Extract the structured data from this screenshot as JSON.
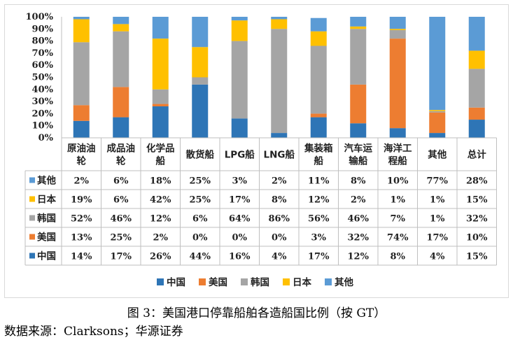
{
  "caption": "图 3：美国港口停靠船舶各造船国比例（按 GT）",
  "source": "数据来源：Clarksons；华源证券",
  "chart_data": {
    "type": "bar",
    "stacked": "percent",
    "categories": [
      [
        "原油油",
        "轮"
      ],
      [
        "成品油",
        "轮"
      ],
      [
        "化学品",
        "船"
      ],
      [
        "散货船"
      ],
      [
        "LPG船"
      ],
      [
        "LNG船"
      ],
      [
        "集装箱",
        "船"
      ],
      [
        "汽车运",
        "输船"
      ],
      [
        "海洋工",
        "程船"
      ],
      [
        "其他"
      ],
      [
        "总计"
      ]
    ],
    "series": [
      {
        "name": "中国",
        "color": "#2e75b6",
        "values": [
          14,
          17,
          26,
          44,
          16,
          4,
          17,
          12,
          8,
          4,
          15
        ]
      },
      {
        "name": "美国",
        "color": "#ed7d31",
        "values": [
          13,
          25,
          2,
          0,
          0,
          0,
          3,
          32,
          74,
          17,
          10
        ]
      },
      {
        "name": "韩国",
        "color": "#a5a5a5",
        "values": [
          52,
          46,
          12,
          6,
          64,
          86,
          56,
          46,
          7,
          1,
          32
        ]
      },
      {
        "name": "日本",
        "color": "#ffc000",
        "values": [
          19,
          6,
          42,
          25,
          17,
          8,
          12,
          2,
          1,
          1,
          15
        ]
      },
      {
        "name": "其他",
        "color": "#5b9bd5",
        "values": [
          2,
          6,
          18,
          25,
          3,
          2,
          11,
          8,
          10,
          77,
          28
        ]
      }
    ],
    "table_row_order": [
      "其他",
      "日本",
      "韩国",
      "美国",
      "中国"
    ],
    "value_suffix": "%",
    "yticks": [
      "0%",
      "10%",
      "20%",
      "30%",
      "40%",
      "50%",
      "60%",
      "70%",
      "80%",
      "90%",
      "100%"
    ],
    "ylim": [
      0,
      100
    ],
    "legend_position": "bottom",
    "grid": false
  }
}
